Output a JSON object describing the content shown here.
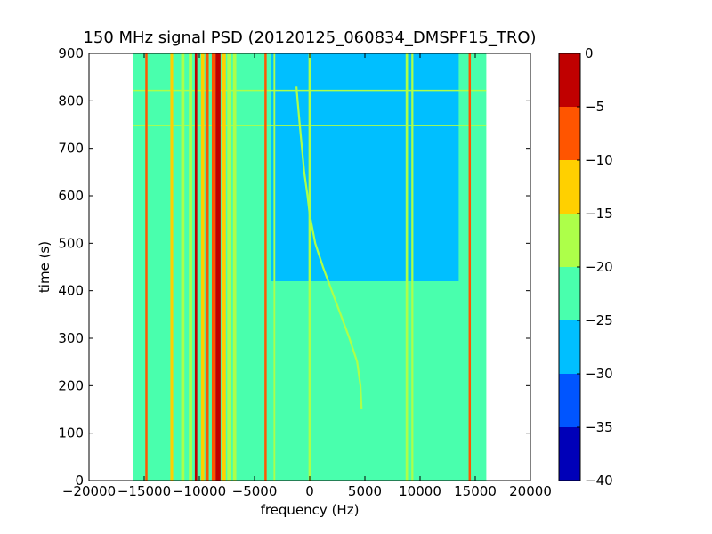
{
  "chart_data": {
    "type": "heatmap",
    "title": "150 MHz signal PSD (20120125_060834_DMSPF15_TRO)",
    "xlabel": "frequency (Hz)",
    "ylabel": "time (s)",
    "xlim": [
      -20000,
      20000
    ],
    "ylim": [
      0,
      900
    ],
    "xticks": [
      -20000,
      -15000,
      -10000,
      -5000,
      0,
      5000,
      10000,
      15000,
      20000
    ],
    "xtick_labels": [
      "−20000",
      "−15000",
      "−10000",
      "−5000",
      "0",
      "5000",
      "10000",
      "15000",
      "20000"
    ],
    "yticks": [
      0,
      100,
      200,
      300,
      400,
      500,
      600,
      700,
      800,
      900
    ],
    "ytick_labels": [
      "0",
      "100",
      "200",
      "300",
      "400",
      "500",
      "600",
      "700",
      "800",
      "900"
    ],
    "data_extent": {
      "x": [
        -16000,
        16000
      ],
      "y": [
        0,
        900
      ]
    },
    "background_level": -22.5,
    "quiet_region": {
      "x": [
        -3500,
        13500
      ],
      "y": [
        420,
        900
      ],
      "level": -27.5
    },
    "vertical_lines": [
      {
        "x": -14800,
        "level": -7.5,
        "width_hz": 200
      },
      {
        "x": -12500,
        "level": -12.5,
        "width_hz": 250
      },
      {
        "x": -11500,
        "level": -17.5,
        "width_hz": 300
      },
      {
        "x": -10800,
        "level": -17.5,
        "width_hz": 300
      },
      {
        "x": -10300,
        "level": -2.5,
        "width_hz": 220
      },
      {
        "x": -9700,
        "level": -12.5,
        "width_hz": 300
      },
      {
        "x": -9300,
        "level": -7.5,
        "width_hz": 300
      },
      {
        "x": -8700,
        "level": -7.5,
        "width_hz": 350
      },
      {
        "x": -8300,
        "level": -2.5,
        "width_hz": 450
      },
      {
        "x": -7800,
        "level": -12.5,
        "width_hz": 400
      },
      {
        "x": -7300,
        "level": -17.5,
        "width_hz": 350
      },
      {
        "x": -6800,
        "level": -17.5,
        "width_hz": 300
      },
      {
        "x": -4000,
        "level": -7.5,
        "width_hz": 200
      },
      {
        "x": -3200,
        "level": -17.5,
        "width_hz": 150
      },
      {
        "x": 0,
        "level": -17.5,
        "width_hz": 220
      },
      {
        "x": 8800,
        "level": -17.5,
        "width_hz": 220
      },
      {
        "x": 9300,
        "level": -17.5,
        "width_hz": 180
      },
      {
        "x": 14500,
        "level": -7.5,
        "width_hz": 200
      }
    ],
    "horizontal_lines": [
      {
        "y": 748,
        "x": [
          -16000,
          16000
        ],
        "level": -17.5
      },
      {
        "y": 822,
        "x": [
          -16000,
          16000
        ],
        "level": -17.5
      }
    ],
    "doppler_track": {
      "level": -17.5,
      "points": [
        [
          -1200,
          830
        ],
        [
          -1100,
          800
        ],
        [
          -900,
          750
        ],
        [
          -700,
          700
        ],
        [
          -500,
          650
        ],
        [
          -200,
          600
        ],
        [
          0,
          560
        ],
        [
          500,
          500
        ],
        [
          1200,
          450
        ],
        [
          2000,
          400
        ],
        [
          2800,
          350
        ],
        [
          3600,
          300
        ],
        [
          4300,
          250
        ],
        [
          4600,
          200
        ],
        [
          4700,
          150
        ]
      ]
    },
    "colorbar": {
      "levels": [
        -40,
        -35,
        -30,
        -25,
        -20,
        -15,
        -10,
        -5,
        0
      ],
      "tick_labels": [
        "−40",
        "−35",
        "−30",
        "−25",
        "−20",
        "−15",
        "−10",
        "−5",
        "0"
      ],
      "colors": [
        "#0000b8",
        "#0055ff",
        "#00bfff",
        "#49ffad",
        "#adff49",
        "#ffd000",
        "#ff5500",
        "#c00000"
      ]
    }
  }
}
